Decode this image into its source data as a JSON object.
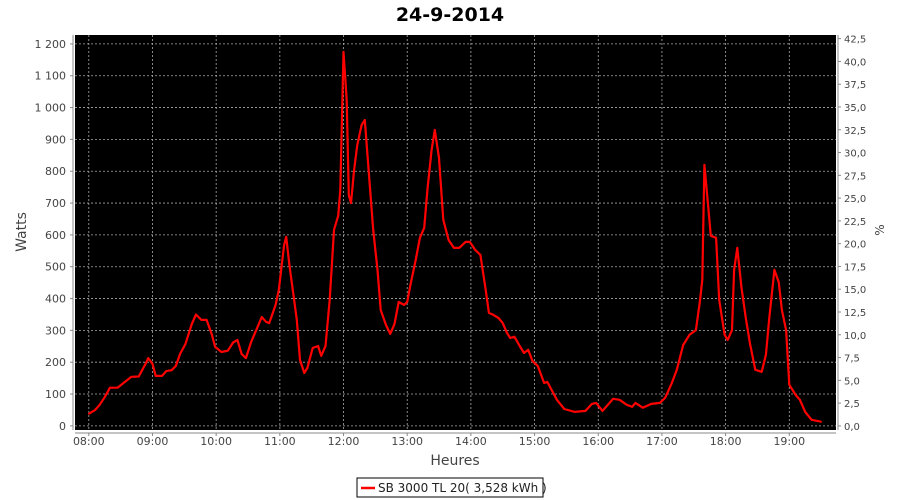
{
  "chart_data": {
    "type": "line",
    "title": "24-9-2014",
    "xlabel": "Heures",
    "ylabel": "Watts",
    "y2label": "%",
    "xlim": [
      "07:47",
      "19:44"
    ],
    "ylim": [
      -13,
      1228
    ],
    "y2lim": [
      -0.45,
      42.9
    ],
    "x_ticks": [
      "08:00",
      "09:00",
      "10:00",
      "11:00",
      "12:00",
      "13:00",
      "14:00",
      "15:00",
      "16:00",
      "17:00",
      "18:00",
      "19:00"
    ],
    "y_ticks": [
      "0",
      "100",
      "200",
      "300",
      "400",
      "500",
      "600",
      "700",
      "800",
      "900",
      "1 000",
      "1 100",
      "1 200"
    ],
    "y2_ticks": [
      "0,0",
      "2,5",
      "5,0",
      "7,5",
      "10,0",
      "12,5",
      "15,0",
      "17,5",
      "20,0",
      "22,5",
      "25,0",
      "27,5",
      "30,0",
      "32,5",
      "35,0",
      "37,5",
      "40,0",
      "42,5"
    ],
    "grid": true,
    "background": "#000000",
    "legend_position": "bottom",
    "series": [
      {
        "name": "SB 3000 TL 20( 3,528 kWh )",
        "color": "#ff0000",
        "points": [
          [
            "08:00",
            38
          ],
          [
            "08:06",
            50
          ],
          [
            "08:10",
            65
          ],
          [
            "08:15",
            90
          ],
          [
            "08:20",
            120
          ],
          [
            "08:27",
            120
          ],
          [
            "08:34",
            138
          ],
          [
            "08:40",
            154
          ],
          [
            "08:47",
            155
          ],
          [
            "08:54",
            198
          ],
          [
            "08:56",
            213
          ],
          [
            "09:00",
            195
          ],
          [
            "09:03",
            157
          ],
          [
            "09:09",
            157
          ],
          [
            "09:13",
            172
          ],
          [
            "09:18",
            175
          ],
          [
            "09:22",
            188
          ],
          [
            "09:26",
            226
          ],
          [
            "09:31",
            257
          ],
          [
            "09:37",
            320
          ],
          [
            "09:41",
            350
          ],
          [
            "09:46",
            333
          ],
          [
            "09:51",
            333
          ],
          [
            "09:56",
            286
          ],
          [
            "09:59",
            248
          ],
          [
            "10:05",
            232
          ],
          [
            "10:11",
            236
          ],
          [
            "10:16",
            262
          ],
          [
            "10:20",
            270
          ],
          [
            "10:24",
            226
          ],
          [
            "10:28",
            213
          ],
          [
            "10:33",
            264
          ],
          [
            "10:39",
            311
          ],
          [
            "10:43",
            342
          ],
          [
            "10:47",
            327
          ],
          [
            "10:50",
            323
          ],
          [
            "10:56",
            380
          ],
          [
            "10:59",
            427
          ],
          [
            "11:04",
            568
          ],
          [
            "11:06",
            594
          ],
          [
            "11:09",
            505
          ],
          [
            "11:13",
            408
          ],
          [
            "11:16",
            333
          ],
          [
            "11:19",
            207
          ],
          [
            "11:23",
            166
          ],
          [
            "11:26",
            182
          ],
          [
            "11:31",
            245
          ],
          [
            "11:36",
            251
          ],
          [
            "11:39",
            220
          ],
          [
            "11:43",
            251
          ],
          [
            "11:47",
            396
          ],
          [
            "11:51",
            616
          ],
          [
            "11:55",
            660
          ],
          [
            "11:57",
            741
          ],
          [
            "12:00",
            1175
          ],
          [
            "12:03",
            1024
          ],
          [
            "12:05",
            725
          ],
          [
            "12:07",
            700
          ],
          [
            "12:10",
            804
          ],
          [
            "12:13",
            883
          ],
          [
            "12:17",
            945
          ],
          [
            "12:20",
            961
          ],
          [
            "12:24",
            788
          ],
          [
            "12:28",
            616
          ],
          [
            "12:32",
            490
          ],
          [
            "12:35",
            364
          ],
          [
            "12:40",
            317
          ],
          [
            "12:44",
            289
          ],
          [
            "12:48",
            320
          ],
          [
            "12:52",
            389
          ],
          [
            "12:57",
            380
          ],
          [
            "13:00",
            389
          ],
          [
            "13:03",
            443
          ],
          [
            "13:08",
            521
          ],
          [
            "13:12",
            591
          ],
          [
            "13:16",
            622
          ],
          [
            "13:19",
            741
          ],
          [
            "13:23",
            867
          ],
          [
            "13:26",
            930
          ],
          [
            "13:30",
            842
          ],
          [
            "13:34",
            647
          ],
          [
            "13:39",
            584
          ],
          [
            "13:44",
            559
          ],
          [
            "13:49",
            559
          ],
          [
            "13:55",
            578
          ],
          [
            "13:59",
            578
          ],
          [
            "14:04",
            553
          ],
          [
            "14:09",
            537
          ],
          [
            "14:14",
            427
          ],
          [
            "14:17",
            355
          ],
          [
            "14:21",
            349
          ],
          [
            "14:26",
            339
          ],
          [
            "14:30",
            323
          ],
          [
            "14:34",
            292
          ],
          [
            "14:37",
            276
          ],
          [
            "14:41",
            280
          ],
          [
            "14:46",
            251
          ],
          [
            "14:50",
            229
          ],
          [
            "14:54",
            239
          ],
          [
            "14:58",
            204
          ],
          [
            "15:03",
            188
          ],
          [
            "15:09",
            135
          ],
          [
            "15:12",
            138
          ],
          [
            "15:16",
            113
          ],
          [
            "15:21",
            82
          ],
          [
            "15:28",
            53
          ],
          [
            "15:38",
            44
          ],
          [
            "15:48",
            47
          ],
          [
            "15:54",
            69
          ],
          [
            "15:58",
            72
          ],
          [
            "16:04",
            47
          ],
          [
            "16:09",
            66
          ],
          [
            "16:14",
            85
          ],
          [
            "16:20",
            82
          ],
          [
            "16:27",
            66
          ],
          [
            "16:32",
            60
          ],
          [
            "16:35",
            72
          ],
          [
            "16:42",
            57
          ],
          [
            "16:50",
            69
          ],
          [
            "16:58",
            72
          ],
          [
            "17:03",
            88
          ],
          [
            "17:09",
            132
          ],
          [
            "17:14",
            176
          ],
          [
            "17:20",
            254
          ],
          [
            "17:26",
            286
          ],
          [
            "17:32",
            301
          ],
          [
            "17:36",
            396
          ],
          [
            "17:38",
            459
          ],
          [
            "17:40",
            820
          ],
          [
            "17:43",
            710
          ],
          [
            "17:46",
            597
          ],
          [
            "17:51",
            591
          ],
          [
            "17:54",
            396
          ],
          [
            "17:59",
            286
          ],
          [
            "18:02",
            270
          ],
          [
            "18:06",
            301
          ],
          [
            "18:08",
            490
          ],
          [
            "18:11",
            559
          ],
          [
            "18:15",
            434
          ],
          [
            "18:19",
            339
          ],
          [
            "18:23",
            258
          ],
          [
            "18:28",
            176
          ],
          [
            "18:34",
            170
          ],
          [
            "18:38",
            223
          ],
          [
            "18:41",
            333
          ],
          [
            "18:46",
            490
          ],
          [
            "18:50",
            452
          ],
          [
            "18:53",
            364
          ],
          [
            "18:57",
            301
          ],
          [
            "19:00",
            129
          ],
          [
            "19:06",
            97
          ],
          [
            "19:10",
            82
          ],
          [
            "19:15",
            44
          ],
          [
            "19:21",
            19
          ],
          [
            "19:30",
            13
          ]
        ]
      }
    ]
  }
}
